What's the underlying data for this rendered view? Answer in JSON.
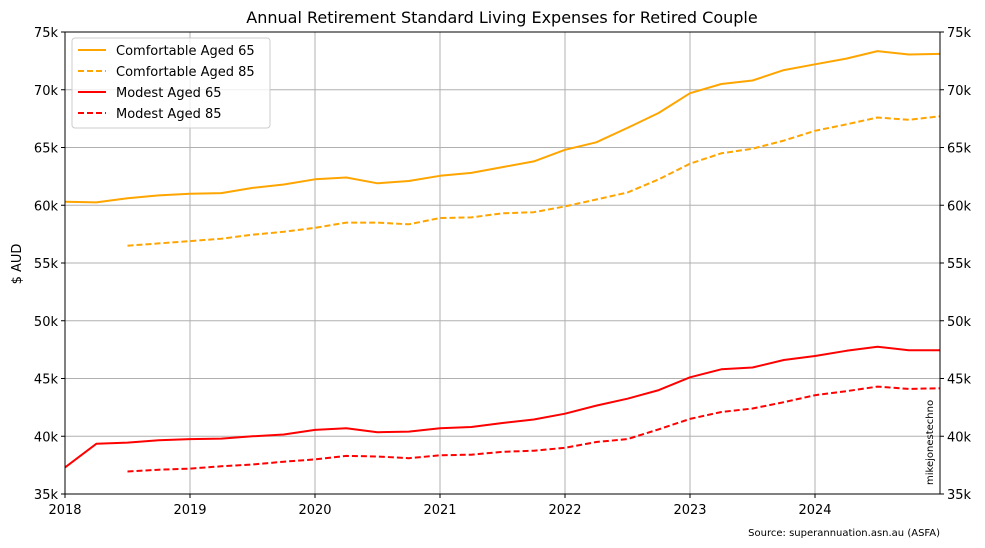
{
  "chart_data": {
    "type": "line",
    "title": "Annual Retirement Standard Living Expenses for Retired Couple",
    "ylabel": "$ AUD",
    "xlabel": "",
    "xlim": [
      2018.0,
      2025.0
    ],
    "ylim": [
      35000,
      75000
    ],
    "x_ticks": [
      {
        "value": 2018,
        "label": "2018"
      },
      {
        "value": 2019,
        "label": "2019"
      },
      {
        "value": 2020,
        "label": "2020"
      },
      {
        "value": 2021,
        "label": "2021"
      },
      {
        "value": 2022,
        "label": "2022"
      },
      {
        "value": 2023,
        "label": "2023"
      },
      {
        "value": 2024,
        "label": "2024"
      }
    ],
    "y_ticks": [
      {
        "value": 35000,
        "label": "35k"
      },
      {
        "value": 40000,
        "label": "40k"
      },
      {
        "value": 45000,
        "label": "45k"
      },
      {
        "value": 50000,
        "label": "50k"
      },
      {
        "value": 55000,
        "label": "55k"
      },
      {
        "value": 60000,
        "label": "60k"
      },
      {
        "value": 65000,
        "label": "65k"
      },
      {
        "value": 70000,
        "label": "70k"
      },
      {
        "value": 75000,
        "label": "75k"
      }
    ],
    "grid": true,
    "legend_position": "top-left",
    "source_note": "Source: superannuation.asn.au (ASFA)",
    "watermark": "mikejonestechno",
    "series": [
      {
        "name": "Comfortable Aged 65",
        "color": "#FFA500",
        "dash": "solid",
        "x": [
          2018.0,
          2018.25,
          2018.5,
          2018.75,
          2019.0,
          2019.25,
          2019.5,
          2019.75,
          2020.0,
          2020.25,
          2020.5,
          2020.75,
          2021.0,
          2021.25,
          2021.5,
          2021.75,
          2022.0,
          2022.25,
          2022.5,
          2022.75,
          2023.0,
          2023.25,
          2023.5,
          2023.75,
          2024.0,
          2024.25,
          2024.5,
          2024.75,
          2025.0
        ],
        "y": [
          60300,
          60250,
          60600,
          60850,
          61000,
          61050,
          61500,
          61800,
          62250,
          62400,
          61900,
          62100,
          62550,
          62800,
          63300,
          63800,
          64800,
          65450,
          66700,
          68000,
          69700,
          70500,
          70800,
          71700,
          72200,
          72700,
          73350,
          73050,
          73100
        ]
      },
      {
        "name": "Comfortable Aged 85",
        "color": "#FFA500",
        "dash": "dashed",
        "x": [
          2018.5,
          2018.75,
          2019.0,
          2019.25,
          2019.5,
          2019.75,
          2020.0,
          2020.25,
          2020.5,
          2020.75,
          2021.0,
          2021.25,
          2021.5,
          2021.75,
          2022.0,
          2022.25,
          2022.5,
          2022.75,
          2023.0,
          2023.25,
          2023.5,
          2023.75,
          2024.0,
          2024.25,
          2024.5,
          2024.75,
          2025.0
        ],
        "y": [
          56500,
          56700,
          56900,
          57100,
          57450,
          57700,
          58050,
          58500,
          58500,
          58350,
          58900,
          58950,
          59300,
          59400,
          59900,
          60500,
          61100,
          62250,
          63600,
          64500,
          64900,
          65600,
          66450,
          67000,
          67600,
          67400,
          67700
        ]
      },
      {
        "name": "Modest Aged 65",
        "color": "#FF0000",
        "dash": "solid",
        "x": [
          2018.0,
          2018.25,
          2018.5,
          2018.75,
          2019.0,
          2019.25,
          2019.5,
          2019.75,
          2020.0,
          2020.25,
          2020.5,
          2020.75,
          2021.0,
          2021.25,
          2021.5,
          2021.75,
          2022.0,
          2022.25,
          2022.5,
          2022.75,
          2023.0,
          2023.25,
          2023.5,
          2023.75,
          2024.0,
          2024.25,
          2024.5,
          2024.75,
          2025.0
        ],
        "y": [
          37300,
          39350,
          39450,
          39650,
          39750,
          39800,
          40000,
          40150,
          40550,
          40700,
          40350,
          40400,
          40700,
          40800,
          41150,
          41450,
          41950,
          42650,
          43250,
          44000,
          45100,
          45800,
          45950,
          46600,
          46950,
          47400,
          47750,
          47450,
          47450
        ]
      },
      {
        "name": "Modest Aged 85",
        "color": "#FF0000",
        "dash": "dashed",
        "x": [
          2018.5,
          2018.75,
          2019.0,
          2019.25,
          2019.5,
          2019.75,
          2020.0,
          2020.25,
          2020.5,
          2020.75,
          2021.0,
          2021.25,
          2021.5,
          2021.75,
          2022.0,
          2022.25,
          2022.5,
          2022.75,
          2023.0,
          2023.25,
          2023.5,
          2023.75,
          2024.0,
          2024.25,
          2024.5,
          2024.75,
          2025.0
        ],
        "y": [
          36950,
          37100,
          37200,
          37400,
          37550,
          37800,
          38000,
          38300,
          38250,
          38100,
          38350,
          38400,
          38650,
          38750,
          39000,
          39500,
          39750,
          40600,
          41500,
          42100,
          42400,
          42950,
          43550,
          43900,
          44300,
          44100,
          44150
        ]
      }
    ]
  }
}
